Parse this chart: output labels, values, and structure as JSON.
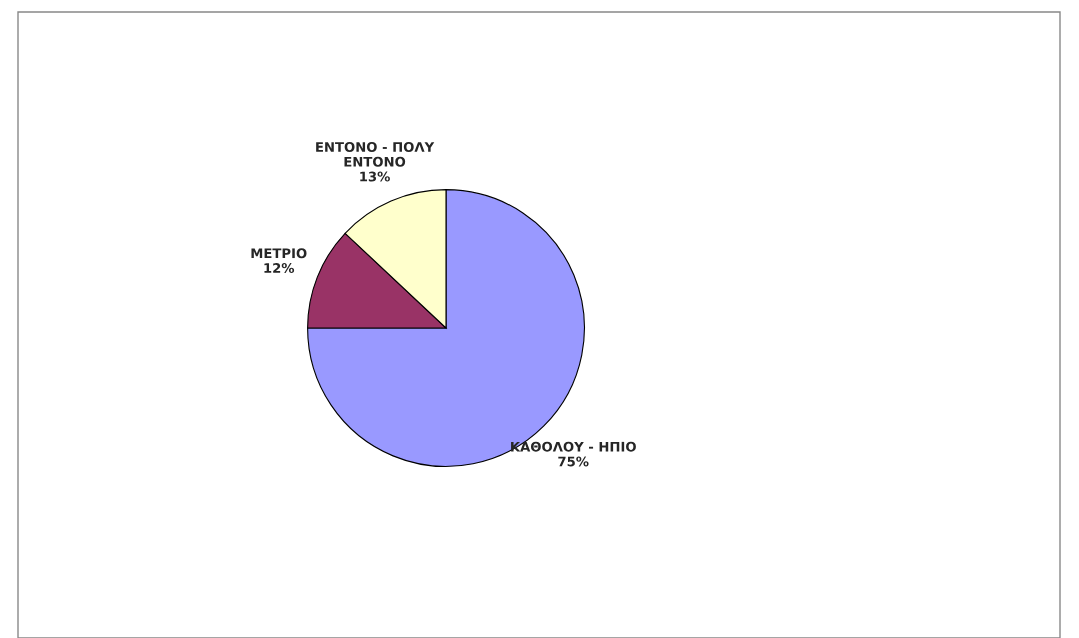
{
  "chart_data": {
    "type": "pie",
    "categories": [
      "ΚΑΘΟΛΟΥ - ΗΠΙΟ",
      "ΜΕΤΡΙΟ",
      "ΕΝΤΟΝΟ - ΠΟΛΥ\nΕΝΤΟΝΟ"
    ],
    "values": [
      75,
      12,
      13
    ],
    "colors": [
      "#9999ff",
      "#993366",
      "#ffffcc"
    ],
    "value_labels": [
      "75%",
      "12%",
      "13%"
    ],
    "legend": false
  }
}
